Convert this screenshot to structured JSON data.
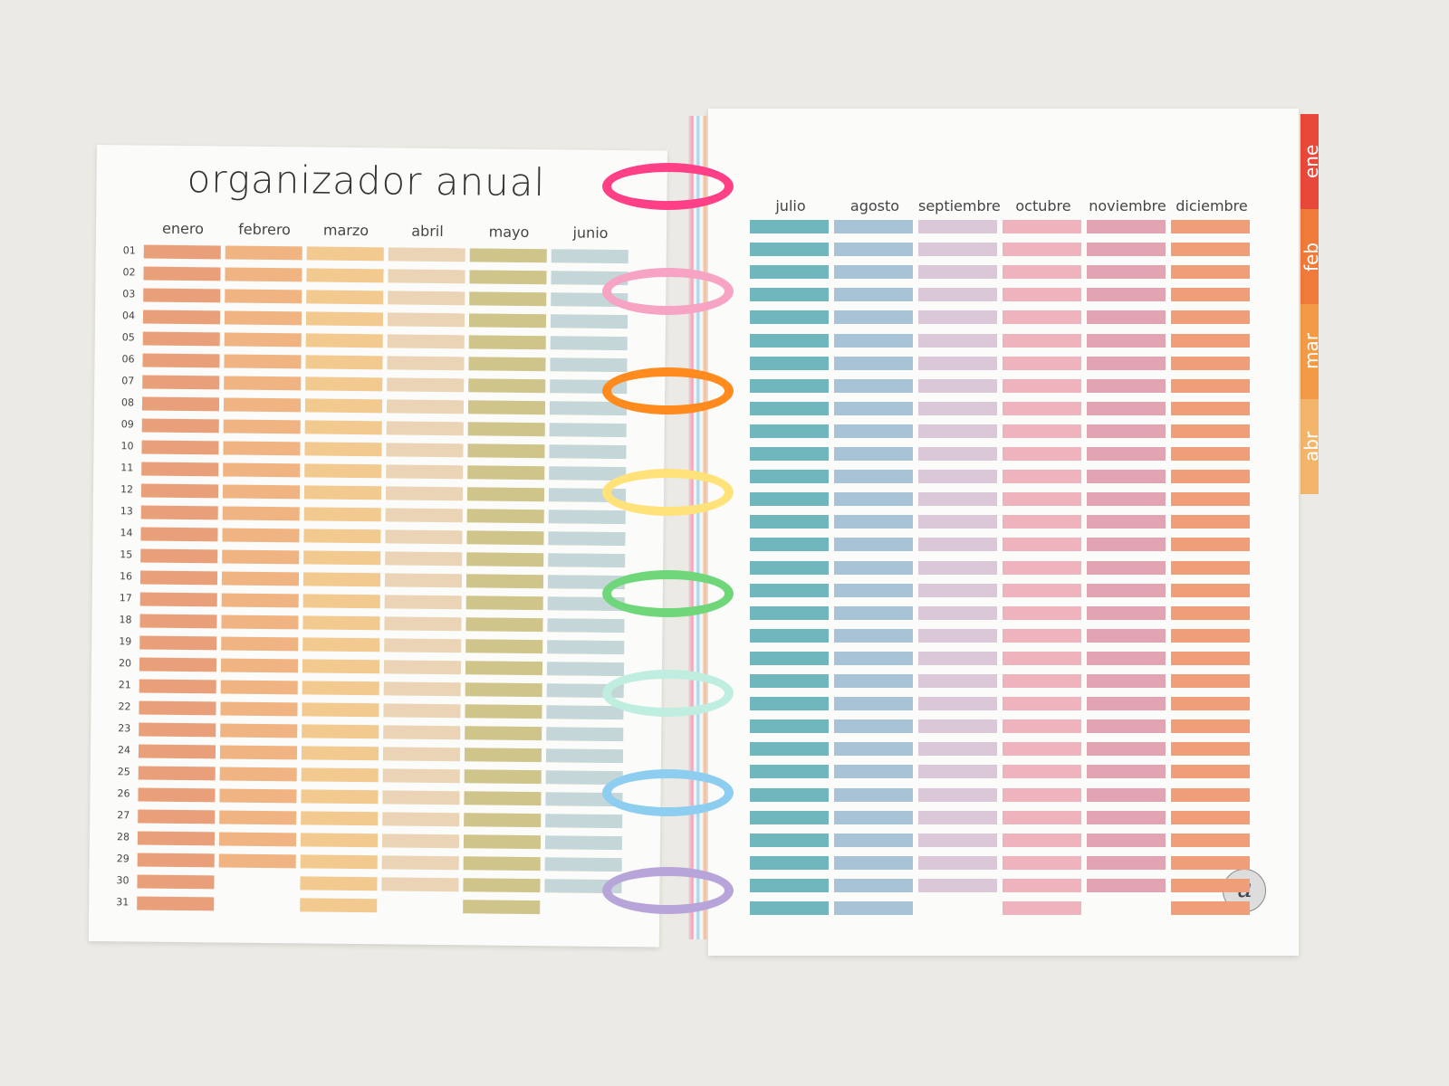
{
  "left_page": {
    "title": "organizador anual",
    "months": [
      {
        "label": "enero",
        "days": 31,
        "color": "#e9a07a"
      },
      {
        "label": "febrero",
        "days": 29,
        "color": "#f0b482"
      },
      {
        "label": "marzo",
        "days": 31,
        "color": "#f2c98e"
      },
      {
        "label": "abril",
        "days": 30,
        "color": "#ebd4b6"
      },
      {
        "label": "mayo",
        "days": 31,
        "color": "#cfc48a"
      },
      {
        "label": "junio",
        "days": 30,
        "color": "#c4d6d8"
      }
    ]
  },
  "right_page": {
    "months": [
      {
        "label": "julio",
        "days": 31,
        "color": "#6fb7bd"
      },
      {
        "label": "agosto",
        "days": 31,
        "color": "#a8c2d6"
      },
      {
        "label": "septiembre",
        "days": 30,
        "color": "#dac7d7"
      },
      {
        "label": "octubre",
        "days": 31,
        "color": "#efb3bd"
      },
      {
        "label": "noviembre",
        "days": 30,
        "color": "#e2a3b3"
      },
      {
        "label": "diciembre",
        "days": 31,
        "color": "#ef9e78"
      }
    ]
  },
  "day_labels": [
    "01",
    "02",
    "03",
    "04",
    "05",
    "06",
    "07",
    "08",
    "09",
    "10",
    "11",
    "12",
    "13",
    "14",
    "15",
    "16",
    "17",
    "18",
    "19",
    "20",
    "21",
    "22",
    "23",
    "24",
    "25",
    "26",
    "27",
    "28",
    "29",
    "30",
    "31"
  ],
  "tabs": [
    {
      "label": "ene",
      "color": "#e8483a"
    },
    {
      "label": "feb",
      "color": "#ef7a3a"
    },
    {
      "label": "mar",
      "color": "#f39a45"
    },
    {
      "label": "abr",
      "color": "#f2b56a"
    }
  ],
  "rings": [
    "#ff3f86",
    "#f7a3c4",
    "#ff8a1e",
    "#ffe27a",
    "#6fd67a",
    "#bfeee0",
    "#8ccdf0",
    "#b7a4d8"
  ],
  "logo": "u"
}
